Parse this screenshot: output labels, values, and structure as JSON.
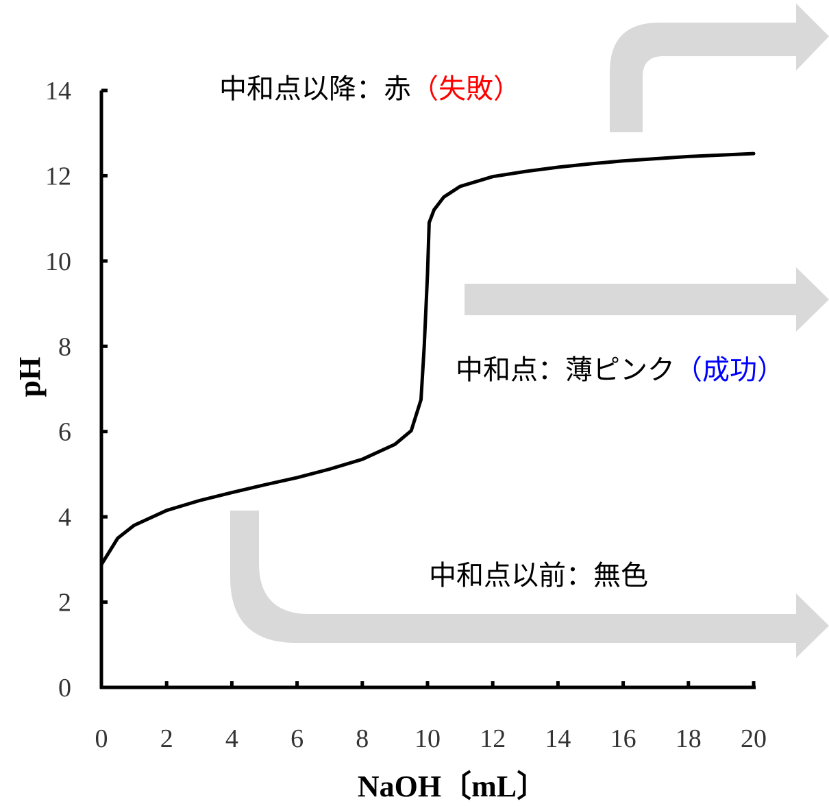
{
  "chart_data": {
    "type": "line",
    "xlabel": "NaOH〔mL〕",
    "ylabel": "pH",
    "xlim": [
      0,
      20
    ],
    "ylim": [
      0,
      14
    ],
    "x_ticks": [
      0,
      2,
      4,
      6,
      8,
      10,
      12,
      14,
      16,
      18,
      20
    ],
    "y_ticks": [
      0,
      2,
      4,
      6,
      8,
      10,
      12,
      14
    ],
    "grid": false,
    "x": [
      0,
      0.5,
      1,
      2,
      3,
      4,
      5,
      6,
      7,
      8,
      9,
      9.5,
      9.8,
      9.9,
      10,
      10.05,
      10.2,
      10.5,
      11,
      12,
      13,
      14,
      15,
      16,
      18,
      20
    ],
    "y": [
      2.88,
      3.5,
      3.8,
      4.15,
      4.38,
      4.57,
      4.75,
      4.92,
      5.12,
      5.35,
      5.7,
      6.02,
      6.75,
      8.0,
      9.7,
      10.9,
      11.2,
      11.5,
      11.75,
      11.98,
      12.1,
      12.2,
      12.28,
      12.35,
      12.45,
      12.52
    ],
    "line_color": "#000000",
    "annotations": [
      {
        "label": "中和点以降：赤",
        "note": "（失敗）",
        "note_color": "#ff0000"
      },
      {
        "label": "中和点：薄ピンク",
        "note": "（成功）",
        "note_color": "#0000ff"
      },
      {
        "label": "中和点以前：無色",
        "note": "",
        "note_color": "#000000"
      }
    ],
    "arrow_color": "#d9d9d9"
  }
}
